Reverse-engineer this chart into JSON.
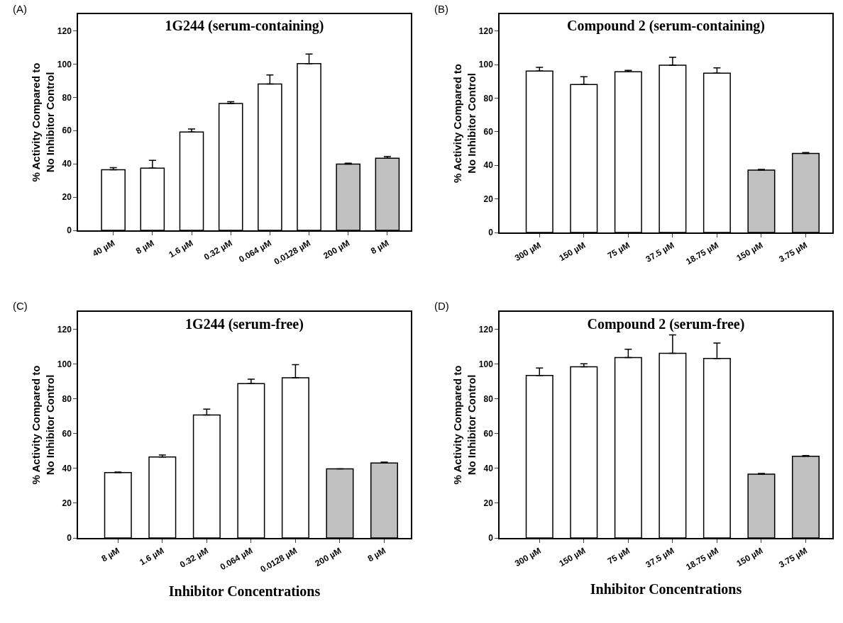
{
  "chart_data": [
    {
      "type": "bar",
      "title": "1G244 (serum-containing)",
      "ylabel": "% Activity Compared to\nNo Inhibitor Control",
      "annotations": [
        "(A)"
      ],
      "categories": [
        "40 µM",
        "8 µM",
        "1.6 µM",
        "0.32 µM",
        "0.064 µM",
        "0.0128 µM",
        "200 µM",
        "8 µM"
      ],
      "values": [
        36.4,
        37.4,
        59.1,
        76.3,
        88.0,
        100.3,
        39.9,
        43.4
      ],
      "colors": [
        "#ffffff",
        "#ffffff",
        "#ffffff",
        "#ffffff",
        "#ffffff",
        "#ffffff",
        "#c0c0c0",
        "#c0c0c0"
      ],
      "errors": [
        [
          36.4,
          37.7
        ],
        [
          37.4,
          42.1
        ],
        [
          59.1,
          61.0
        ],
        [
          76.3,
          77.4
        ],
        [
          88.0,
          93.4
        ],
        [
          100.3,
          106.0
        ],
        [
          39.9,
          40.4
        ],
        [
          43.4,
          44.4
        ]
      ],
      "ylim": [
        0,
        130
      ],
      "yticks": [
        0,
        20,
        40,
        60,
        80,
        100,
        120
      ]
    },
    {
      "type": "bar",
      "title": "Compound 2 (serum-containing)",
      "ylabel": "% Activity Compared to\nNo Inhibitor Control",
      "annotations": [
        "(B)"
      ],
      "categories": [
        "300 µM",
        "150 µM",
        "75 µM",
        "37.5 µM",
        "18.75 µM",
        "150 µM",
        "3.75 µM"
      ],
      "values": [
        96.1,
        88.1,
        95.7,
        99.6,
        94.9,
        37.1,
        47.1
      ],
      "colors": [
        "#ffffff",
        "#ffffff",
        "#ffffff",
        "#ffffff",
        "#ffffff",
        "#c0c0c0",
        "#c0c0c0"
      ],
      "errors": [
        [
          96.1,
          98.3
        ],
        [
          88.1,
          92.7
        ],
        [
          95.7,
          96.6
        ],
        [
          99.6,
          104.4
        ],
        [
          94.9,
          98.0
        ],
        [
          37.1,
          37.6
        ],
        [
          47.1,
          47.6
        ]
      ],
      "ylim": [
        0,
        130
      ],
      "yticks": [
        0,
        20,
        40,
        60,
        80,
        100,
        120
      ]
    },
    {
      "type": "bar",
      "title": "1G244 (serum-free)",
      "xlabel": "Inhibitor Concentrations",
      "ylabel": "% Activity Compared to\nNo Inhibitor Control",
      "annotations": [
        "(C)"
      ],
      "categories": [
        "8 µM",
        "1.6 µM",
        "0.32 µM",
        "0.064 µM",
        "0.0128 µM",
        "200 µM",
        "8 µM"
      ],
      "values": [
        37.6,
        46.6,
        70.7,
        88.7,
        92.1,
        39.7,
        43.1
      ],
      "colors": [
        "#ffffff",
        "#ffffff",
        "#ffffff",
        "#ffffff",
        "#ffffff",
        "#c0c0c0",
        "#c0c0c0"
      ],
      "errors": [
        [
          37.6,
          37.9
        ],
        [
          46.6,
          47.7
        ],
        [
          70.7,
          74.1
        ],
        [
          88.7,
          91.3
        ],
        [
          92.1,
          99.6
        ],
        null,
        [
          43.1,
          43.6
        ]
      ],
      "ylim": [
        0,
        130
      ],
      "yticks": [
        0,
        20,
        40,
        60,
        80,
        100,
        120
      ]
    },
    {
      "type": "bar",
      "title": "Compound 2 (serum-free)",
      "xlabel": "Inhibitor Concentrations",
      "ylabel": "% Activity Compared to\nNo Inhibitor Control",
      "annotations": [
        "(D)"
      ],
      "categories": [
        "300 µM",
        "150 µM",
        "75 µM",
        "37.5 µM",
        "18.75 µM",
        "150 µM",
        "3.75 µM"
      ],
      "values": [
        93.4,
        98.4,
        103.7,
        106.2,
        103.2,
        36.7,
        47.0
      ],
      "colors": [
        "#ffffff",
        "#ffffff",
        "#ffffff",
        "#ffffff",
        "#ffffff",
        "#c0c0c0",
        "#c0c0c0"
      ],
      "errors": [
        [
          93.4,
          97.7
        ],
        [
          98.4,
          100.1
        ],
        [
          103.7,
          108.5
        ],
        [
          106.2,
          116.8
        ],
        [
          103.2,
          112.1
        ],
        [
          36.7,
          37.1
        ],
        [
          47.0,
          47.4
        ]
      ],
      "ylim": [
        0,
        130
      ],
      "yticks": [
        0,
        20,
        40,
        60,
        80,
        100,
        120
      ]
    }
  ]
}
